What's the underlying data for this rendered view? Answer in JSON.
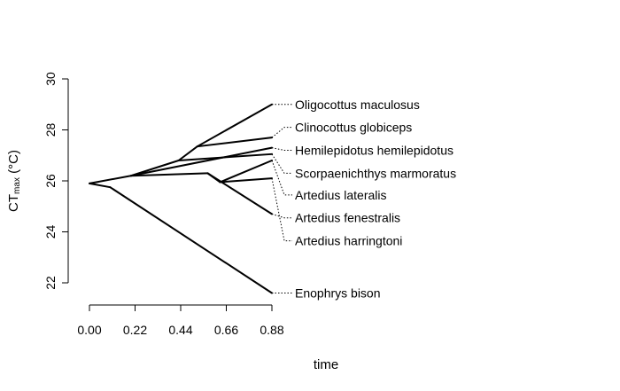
{
  "chart_data": {
    "type": "phylogenetic traitgram",
    "xlabel": "time",
    "ylabel": "CT",
    "ylabel_subscript": "max",
    "ylabel_suffix": " (°C)",
    "xlim": [
      0,
      0.88
    ],
    "ylim": [
      21.5,
      30
    ],
    "xticks": [
      0.0,
      0.22,
      0.44,
      0.66,
      0.88
    ],
    "xtick_labels": [
      "0.00",
      "0.22",
      "0.44",
      "0.66",
      "0.88"
    ],
    "yticks": [
      22,
      24,
      26,
      28,
      30
    ],
    "ytick_labels": [
      "22",
      "24",
      "26",
      "28",
      "30"
    ],
    "grid": false,
    "nodes": [
      {
        "id": "root",
        "x": 0.0,
        "y": 25.9
      },
      {
        "id": "n1",
        "x": 0.1,
        "y": 25.75
      },
      {
        "id": "n2",
        "x": 0.2,
        "y": 26.2
      },
      {
        "id": "n3",
        "x": 0.43,
        "y": 26.8
      },
      {
        "id": "n4",
        "x": 0.52,
        "y": 27.35
      },
      {
        "id": "n5",
        "x": 0.57,
        "y": 26.3
      },
      {
        "id": "n6",
        "x": 0.63,
        "y": 25.95
      }
    ],
    "edges": [
      [
        "root",
        "n1"
      ],
      [
        "root",
        "n2"
      ],
      [
        "n1",
        "Enophrys bison"
      ],
      [
        "n2",
        "n3"
      ],
      [
        "n2",
        "n5"
      ],
      [
        "n2",
        "Hemilepidotus hemilepidotus"
      ],
      [
        "n3",
        "n4"
      ],
      [
        "n3",
        "Scorpaenichthys marmoratus"
      ],
      [
        "n4",
        "Oligocottus maculosus"
      ],
      [
        "n4",
        "Clinocottus globiceps"
      ],
      [
        "n5",
        "n6"
      ],
      [
        "n5",
        "Artedius fenestralis"
      ],
      [
        "n6",
        "Artedius lateralis"
      ],
      [
        "n6",
        "Artedius harringtoni"
      ]
    ],
    "tips": [
      {
        "name": "Oligocottus maculosus",
        "x": 0.88,
        "y": 29.0,
        "label_y": 29.0
      },
      {
        "name": "Clinocottus globiceps",
        "x": 0.88,
        "y": 27.7,
        "label_y": 28.1
      },
      {
        "name": "Hemilepidotus hemilepidotus",
        "x": 0.88,
        "y": 27.3,
        "label_y": 27.2
      },
      {
        "name": "Scorpaenichthys marmoratus",
        "x": 0.88,
        "y": 27.05,
        "label_y": 26.3
      },
      {
        "name": "Artedius lateralis",
        "x": 0.88,
        "y": 26.8,
        "label_y": 25.45
      },
      {
        "name": "Artedius fenestralis",
        "x": 0.88,
        "y": 24.7,
        "label_y": 24.55
      },
      {
        "name": "Artedius harringtoni",
        "x": 0.88,
        "y": 26.1,
        "label_y": 23.65
      },
      {
        "name": "Enophrys bison",
        "x": 0.88,
        "y": 21.6,
        "label_y": 21.6
      }
    ]
  }
}
